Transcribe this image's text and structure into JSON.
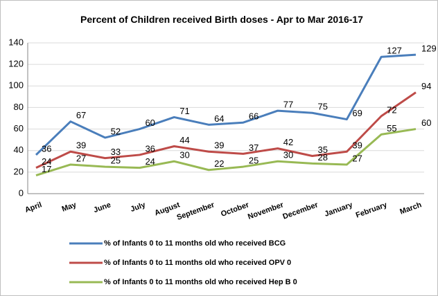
{
  "chart_data": {
    "type": "line",
    "title": "Percent of Children received Birth doses - Apr to Mar 2016-17",
    "categories": [
      "April",
      "May",
      "June",
      "July",
      "August",
      "September",
      "October",
      "November",
      "December",
      "January",
      "February",
      "March"
    ],
    "series": [
      {
        "name": "% of Infants 0 to 11 months old who received BCG",
        "color": "#4a7ebb",
        "values": [
          36,
          67,
          52,
          60,
          71,
          64,
          66,
          77,
          75,
          69,
          127,
          129
        ]
      },
      {
        "name": "% of Infants 0 to 11 months old who received OPV 0",
        "color": "#be4b48",
        "values": [
          24,
          39,
          33,
          36,
          44,
          39,
          37,
          42,
          35,
          39,
          72,
          94
        ]
      },
      {
        "name": "% of Infants 0 to 11 months old who received Hep B 0",
        "color": "#98b954",
        "values": [
          17,
          27,
          25,
          24,
          30,
          22,
          25,
          30,
          28,
          27,
          55,
          60
        ]
      }
    ],
    "ylim": [
      0,
      140
    ],
    "yticks": [
      0,
      20,
      40,
      60,
      80,
      100,
      120,
      140
    ],
    "grid": true,
    "legend": "bottom"
  }
}
